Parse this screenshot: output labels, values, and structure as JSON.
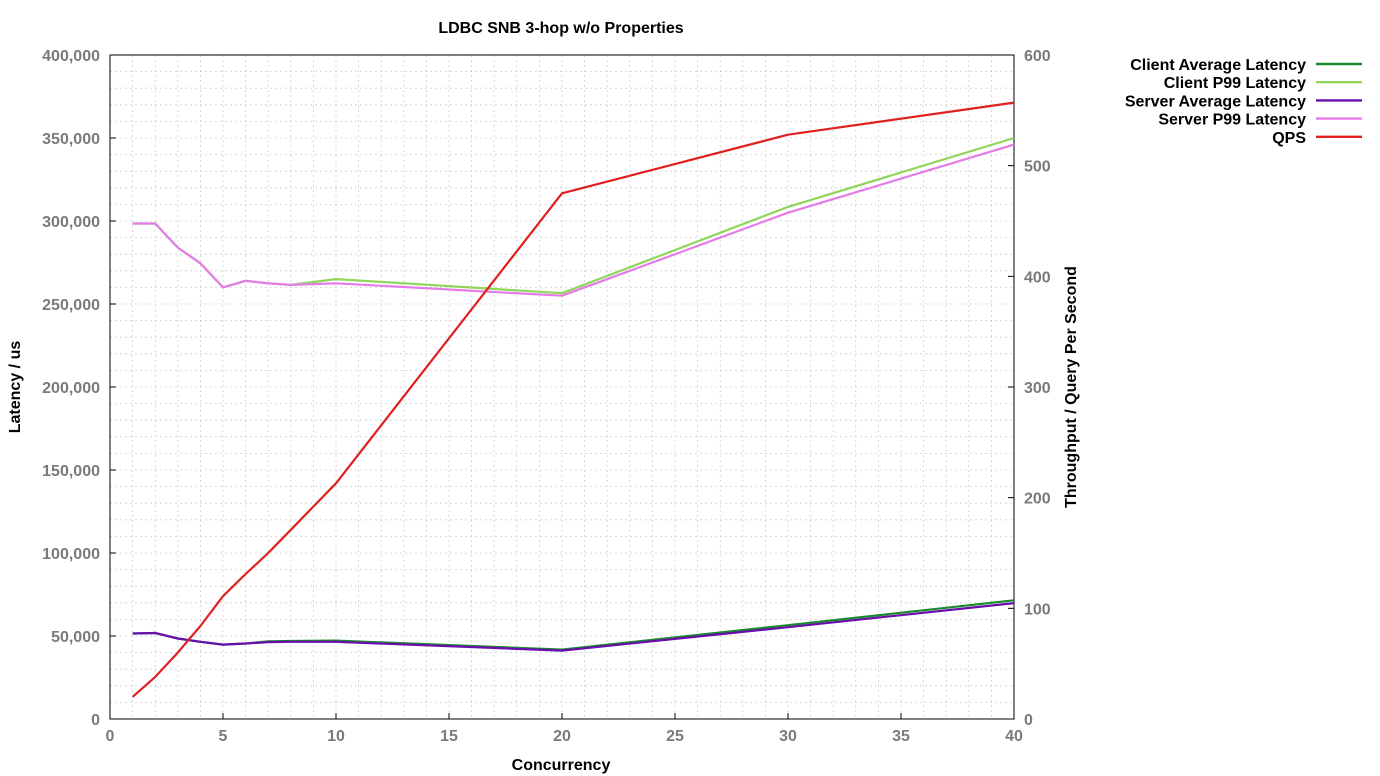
{
  "chart_data": {
    "type": "line",
    "title": "LDBC SNB 3-hop w/o Properties",
    "xlabel": "Concurrency",
    "ylabel": "Latency / us",
    "y2label": "Throughput / Query Per Second",
    "xlim": [
      0,
      40
    ],
    "ylim": [
      0,
      400000
    ],
    "y2lim": [
      0,
      600
    ],
    "x_ticks": [
      "0",
      "5",
      "10",
      "15",
      "20",
      "25",
      "30",
      "35",
      "40"
    ],
    "y_ticks": [
      "0",
      "50,000",
      "100,000",
      "150,000",
      "200,000",
      "250,000",
      "300,000",
      "350,000",
      "400,000"
    ],
    "y2_ticks": [
      "0",
      "100",
      "200",
      "300",
      "400",
      "500",
      "600"
    ],
    "grid": true,
    "legend_position": "outside-top-right",
    "series": [
      {
        "name": "Client Average Latency",
        "axis": "left",
        "color": "#1a8a2e",
        "x": [
          1,
          2,
          3,
          4,
          5,
          6,
          7,
          8,
          10,
          20,
          30,
          40
        ],
        "values": [
          51500,
          51800,
          48500,
          46500,
          44800,
          45500,
          46800,
          47000,
          47200,
          41800,
          56500,
          71500
        ]
      },
      {
        "name": "Client P99 Latency",
        "axis": "left",
        "color": "#8fd65a",
        "x": [
          1,
          2,
          3,
          4,
          5,
          6,
          7,
          8,
          10,
          20,
          30,
          40
        ],
        "values": [
          298500,
          298500,
          284000,
          274500,
          260000,
          264000,
          262500,
          261500,
          265000,
          256500,
          308500,
          350000
        ]
      },
      {
        "name": "Server Average Latency",
        "axis": "left",
        "color": "#6a0dad",
        "x": [
          1,
          2,
          3,
          4,
          5,
          6,
          7,
          8,
          10,
          20,
          30,
          40
        ],
        "values": [
          51500,
          51800,
          48500,
          46500,
          44800,
          45500,
          46300,
          46500,
          46500,
          41200,
          55300,
          69800
        ]
      },
      {
        "name": "Server P99 Latency",
        "axis": "left",
        "color": "#e57be8",
        "x": [
          1,
          2,
          3,
          4,
          5,
          6,
          7,
          8,
          10,
          20,
          30,
          40
        ],
        "values": [
          298500,
          298500,
          284000,
          274500,
          260000,
          264000,
          262500,
          261500,
          262500,
          255000,
          305000,
          346000
        ]
      },
      {
        "name": "QPS",
        "axis": "right",
        "color": "#e0201f",
        "x": [
          1,
          2,
          3,
          4,
          5,
          6,
          7,
          8,
          10,
          20,
          30,
          40
        ],
        "values": [
          20,
          38,
          60,
          84,
          111,
          131,
          150,
          171,
          213,
          475,
          528,
          557
        ]
      }
    ]
  }
}
